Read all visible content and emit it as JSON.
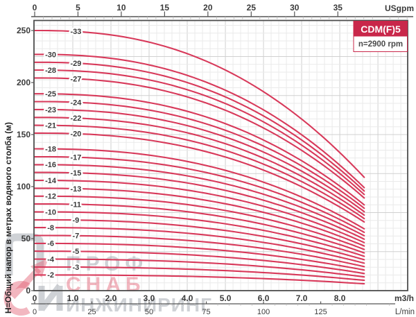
{
  "title_box": {
    "model": "CDM(F)5",
    "speed": "n=2900 rpm"
  },
  "axes": {
    "top": {
      "unit": "USgpm",
      "ticks": [
        0,
        5,
        10,
        15,
        20,
        25,
        30,
        35
      ]
    },
    "bottom_m3h": {
      "unit": "m3/h",
      "ticks": [
        "0",
        "1.0",
        "2.0",
        "3.0",
        "4.0",
        "5.0",
        "6.0",
        "7.0",
        "8.0"
      ]
    },
    "bottom_lmin": {
      "unit": "L/min",
      "ticks": [
        0,
        25,
        50,
        75,
        100,
        125
      ]
    },
    "left": {
      "label": "Н=Общий напор в метрах водяного столба (м)",
      "ticks": [
        0,
        50,
        100,
        150,
        200,
        250
      ]
    }
  },
  "watermark": {
    "line1": "ПРОФ",
    "line2": "СНАБ",
    "line3": "ИНЖИНИРИНГ"
  },
  "colors": {
    "curve": "#d8395a",
    "box_red": "#c9274a",
    "grid_minor": "#eaeaea",
    "grid_major": "#d0d0d0",
    "border": "#4d4d4d",
    "tick": "#555555",
    "minor_tick": "#b9b9b9",
    "watermark_gray": "#9aa0a8",
    "watermark_red": "#e0566c"
  },
  "chart_data": {
    "type": "line",
    "title": "CDM(F)5",
    "speed_rpm": 2900,
    "ylabel": "Н=Общий напор в метрах водяного столба (м)",
    "x_units": [
      "m3/h",
      "L/min",
      "USgpm"
    ],
    "xlim_m3h": [
      0,
      9.78
    ],
    "ylim": [
      0,
      259
    ],
    "q_end_m3h": 8.64,
    "curve_exponent": 2.4,
    "usgpm_to_m3h": 0.2271,
    "lmin_to_m3h": 0.06,
    "grid": {
      "x_minor_m3h": 0.2,
      "x_major_every": 5,
      "y_minor_m": 7.5,
      "y_major_every": 5
    },
    "series": [
      {
        "label": "-33",
        "stages": 33,
        "shutoff_head_m": 250.0,
        "head_at_max_flow_m": 108.9,
        "label_q_m3h": 1.08
      },
      {
        "label": "-30",
        "stages": 30,
        "shutoff_head_m": 227.1,
        "head_at_max_flow_m": 99.0,
        "label_q_m3h": 0.42
      },
      {
        "label": "-29",
        "stages": 29,
        "shutoff_head_m": 219.5,
        "head_at_max_flow_m": 95.7,
        "label_q_m3h": 1.08
      },
      {
        "label": "-28",
        "stages": 28,
        "shutoff_head_m": 212.0,
        "head_at_max_flow_m": 92.4,
        "label_q_m3h": 0.42
      },
      {
        "label": "-27",
        "stages": 27,
        "shutoff_head_m": 204.4,
        "head_at_max_flow_m": 89.1,
        "label_q_m3h": 1.08
      },
      {
        "label": "-25",
        "stages": 25,
        "shutoff_head_m": 189.2,
        "head_at_max_flow_m": 82.5,
        "label_q_m3h": 0.42
      },
      {
        "label": "-24",
        "stages": 24,
        "shutoff_head_m": 181.7,
        "head_at_max_flow_m": 79.2,
        "label_q_m3h": 1.08
      },
      {
        "label": "-23",
        "stages": 23,
        "shutoff_head_m": 174.1,
        "head_at_max_flow_m": 75.9,
        "label_q_m3h": 0.42
      },
      {
        "label": "-22",
        "stages": 22,
        "shutoff_head_m": 166.5,
        "head_at_max_flow_m": 72.6,
        "label_q_m3h": 1.08
      },
      {
        "label": "-21",
        "stages": 21,
        "shutoff_head_m": 158.9,
        "head_at_max_flow_m": 69.3,
        "label_q_m3h": 0.42
      },
      {
        "label": "-20",
        "stages": 20,
        "shutoff_head_m": 151.4,
        "head_at_max_flow_m": 66.0,
        "label_q_m3h": 1.08
      },
      {
        "label": "-18",
        "stages": 18,
        "shutoff_head_m": 136.3,
        "head_at_max_flow_m": 59.4,
        "label_q_m3h": 0.42
      },
      {
        "label": "-17",
        "stages": 17,
        "shutoff_head_m": 128.7,
        "head_at_max_flow_m": 56.1,
        "label_q_m3h": 1.08
      },
      {
        "label": "-16",
        "stages": 16,
        "shutoff_head_m": 121.1,
        "head_at_max_flow_m": 52.8,
        "label_q_m3h": 0.42
      },
      {
        "label": "-15",
        "stages": 15,
        "shutoff_head_m": 113.6,
        "head_at_max_flow_m": 49.5,
        "label_q_m3h": 1.08
      },
      {
        "label": "-14",
        "stages": 14,
        "shutoff_head_m": 106.0,
        "head_at_max_flow_m": 46.2,
        "label_q_m3h": 0.42
      },
      {
        "label": "-13",
        "stages": 13,
        "shutoff_head_m": 98.4,
        "head_at_max_flow_m": 42.9,
        "label_q_m3h": 1.08
      },
      {
        "label": "-12",
        "stages": 12,
        "shutoff_head_m": 90.8,
        "head_at_max_flow_m": 39.6,
        "label_q_m3h": 0.42
      },
      {
        "label": "-11",
        "stages": 11,
        "shutoff_head_m": 83.3,
        "head_at_max_flow_m": 36.3,
        "label_q_m3h": 1.08
      },
      {
        "label": "-10",
        "stages": 10,
        "shutoff_head_m": 75.7,
        "head_at_max_flow_m": 33.0,
        "label_q_m3h": 0.42
      },
      {
        "label": "-9",
        "stages": 9,
        "shutoff_head_m": 68.1,
        "head_at_max_flow_m": 29.7,
        "label_q_m3h": 1.08
      },
      {
        "label": "-8",
        "stages": 8,
        "shutoff_head_m": 60.6,
        "head_at_max_flow_m": 26.4,
        "label_q_m3h": 0.42
      },
      {
        "label": "-7",
        "stages": 7,
        "shutoff_head_m": 53.0,
        "head_at_max_flow_m": 23.1,
        "label_q_m3h": 1.08
      },
      {
        "label": "-6",
        "stages": 6,
        "shutoff_head_m": 45.4,
        "head_at_max_flow_m": 19.8,
        "label_q_m3h": 0.42
      },
      {
        "label": "-5",
        "stages": 5,
        "shutoff_head_m": 37.9,
        "head_at_max_flow_m": 16.5,
        "label_q_m3h": 1.08
      },
      {
        "label": "-4",
        "stages": 4,
        "shutoff_head_m": 30.3,
        "head_at_max_flow_m": 13.2,
        "label_q_m3h": 0.42
      },
      {
        "label": "-3",
        "stages": 3,
        "shutoff_head_m": 22.7,
        "head_at_max_flow_m": 9.9,
        "label_q_m3h": 1.08
      },
      {
        "label": "-2",
        "stages": 2,
        "shutoff_head_m": 15.1,
        "head_at_max_flow_m": 6.6,
        "label_q_m3h": 0.42
      }
    ]
  }
}
